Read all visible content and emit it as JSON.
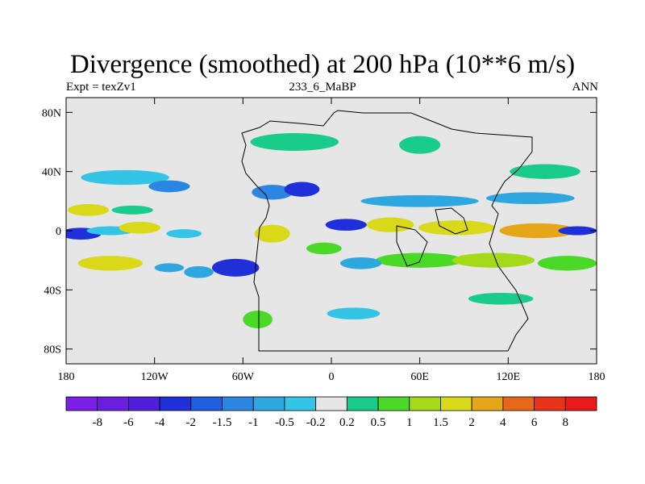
{
  "title": "Divergence (smoothed) at 200 hPa (10**6 m/s)",
  "subtitle_left": "Expt = texZv1",
  "subtitle_center": "233_6_MaBP",
  "subtitle_right": "ANN",
  "chart_data": {
    "type": "contour-map",
    "title": "Divergence (smoothed) at 200 hPa (10**6 m/s)",
    "xlim": [
      -180,
      180
    ],
    "ylim": [
      -90,
      90
    ],
    "x_ticks": [
      {
        "value": -180,
        "label": "180"
      },
      {
        "value": -120,
        "label": "120W"
      },
      {
        "value": -60,
        "label": "60W"
      },
      {
        "value": 0,
        "label": "0"
      },
      {
        "value": 60,
        "label": "60E"
      },
      {
        "value": 120,
        "label": "120E"
      },
      {
        "value": 180,
        "label": "180"
      }
    ],
    "y_ticks": [
      {
        "value": 80,
        "label": "80N"
      },
      {
        "value": 40,
        "label": "40N"
      },
      {
        "value": 0,
        "label": "0"
      },
      {
        "value": -40,
        "label": "40S"
      },
      {
        "value": -80,
        "label": "80S"
      }
    ],
    "colorbar": {
      "colors": [
        "#7a1fe6",
        "#6a1ee0",
        "#4f1fd9",
        "#1f2fd9",
        "#1f5fe0",
        "#2a86e0",
        "#2ea6e0",
        "#33c4e6",
        "#e6e6e6",
        "#19cc8c",
        "#4ad926",
        "#a6d91a",
        "#d9d919",
        "#e6a61a",
        "#e6661a",
        "#e6331a",
        "#e61a1a"
      ],
      "labels": [
        "-8",
        "-6",
        "-4",
        "-2",
        "-1.5",
        "-1",
        "-0.5",
        "-0.2",
        "0.2",
        "0.5",
        "1",
        "1.5",
        "2",
        "4",
        "6",
        "8"
      ]
    },
    "field": [
      {
        "lon": -170,
        "lat": -2,
        "rx": 14,
        "ry": 4,
        "level": 3
      },
      {
        "lon": -150,
        "lat": 0,
        "rx": 16,
        "ry": 3,
        "level": 7
      },
      {
        "lon": -130,
        "lat": 2,
        "rx": 14,
        "ry": 4,
        "level": 12
      },
      {
        "lon": -165,
        "lat": 14,
        "rx": 14,
        "ry": 4,
        "level": 12
      },
      {
        "lon": -135,
        "lat": 14,
        "rx": 14,
        "ry": 3,
        "level": 9
      },
      {
        "lon": -140,
        "lat": 36,
        "rx": 30,
        "ry": 5,
        "level": 7
      },
      {
        "lon": -110,
        "lat": 30,
        "rx": 14,
        "ry": 4,
        "level": 5
      },
      {
        "lon": -100,
        "lat": -2,
        "rx": 12,
        "ry": 3,
        "level": 7
      },
      {
        "lon": -150,
        "lat": -22,
        "rx": 22,
        "ry": 5,
        "level": 12
      },
      {
        "lon": -110,
        "lat": -25,
        "rx": 10,
        "ry": 3,
        "level": 6
      },
      {
        "lon": -65,
        "lat": -25,
        "rx": 16,
        "ry": 6,
        "level": 3
      },
      {
        "lon": -90,
        "lat": -28,
        "rx": 10,
        "ry": 4,
        "level": 6
      },
      {
        "lon": -40,
        "lat": 26,
        "rx": 14,
        "ry": 5,
        "level": 5
      },
      {
        "lon": -20,
        "lat": 28,
        "rx": 12,
        "ry": 5,
        "level": 3
      },
      {
        "lon": 10,
        "lat": 4,
        "rx": 14,
        "ry": 4,
        "level": 3
      },
      {
        "lon": -40,
        "lat": -2,
        "rx": 12,
        "ry": 6,
        "level": 12
      },
      {
        "lon": -5,
        "lat": -12,
        "rx": 12,
        "ry": 4,
        "level": 10
      },
      {
        "lon": 40,
        "lat": 4,
        "rx": 16,
        "ry": 5,
        "level": 12
      },
      {
        "lon": 85,
        "lat": 2,
        "rx": 26,
        "ry": 5,
        "level": 12
      },
      {
        "lon": 140,
        "lat": 0,
        "rx": 26,
        "ry": 5,
        "level": 13
      },
      {
        "lon": 167,
        "lat": 0,
        "rx": 13,
        "ry": 3,
        "level": 3
      },
      {
        "lon": 60,
        "lat": 20,
        "rx": 40,
        "ry": 4,
        "level": 6
      },
      {
        "lon": 135,
        "lat": 22,
        "rx": 30,
        "ry": 4,
        "level": 6
      },
      {
        "lon": 60,
        "lat": -20,
        "rx": 30,
        "ry": 5,
        "level": 10
      },
      {
        "lon": 110,
        "lat": -20,
        "rx": 28,
        "ry": 5,
        "level": 11
      },
      {
        "lon": 160,
        "lat": -22,
        "rx": 20,
        "ry": 5,
        "level": 10
      },
      {
        "lon": 20,
        "lat": -22,
        "rx": 14,
        "ry": 4,
        "level": 6
      },
      {
        "lon": -25,
        "lat": 60,
        "rx": 30,
        "ry": 6,
        "level": 9
      },
      {
        "lon": 60,
        "lat": 58,
        "rx": 14,
        "ry": 6,
        "level": 9
      },
      {
        "lon": 145,
        "lat": 40,
        "rx": 24,
        "ry": 5,
        "level": 9
      },
      {
        "lon": -50,
        "lat": -60,
        "rx": 10,
        "ry": 6,
        "level": 10
      },
      {
        "lon": 15,
        "lat": -56,
        "rx": 18,
        "ry": 4,
        "level": 7
      },
      {
        "lon": 115,
        "lat": -46,
        "rx": 22,
        "ry": 4,
        "level": 9
      }
    ]
  }
}
